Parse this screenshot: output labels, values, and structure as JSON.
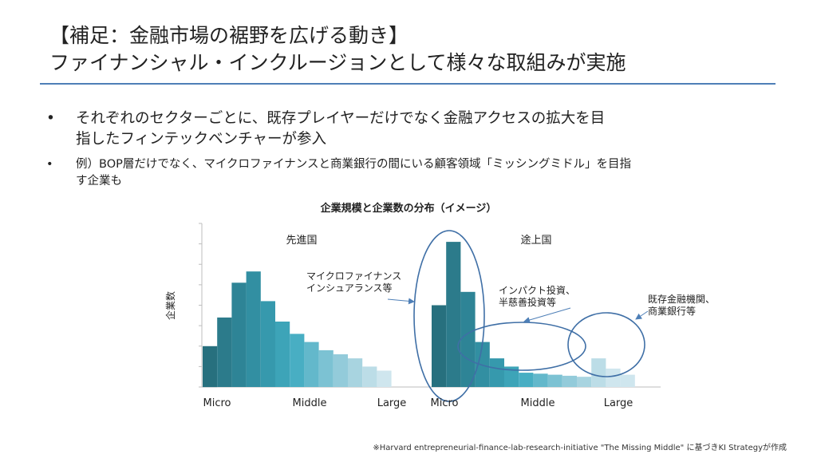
{
  "slide": {
    "title_line1": "【補足：金融市場の裾野を広げる動き】",
    "title_line2": "ファイナンシャル・インクルージョンとして様々な取組みが実施",
    "bullets": [
      {
        "marker": "•",
        "text_line1": "それぞれのセクターごとに、既存プレイヤーだけでなく金融アクセスの拡大を目",
        "text_line2": "指したフィンテックベンチャーが参入"
      },
      {
        "marker": "•",
        "text_line1": "例）BOP層だけでなく、マイクロファイナンスと商業銀行の間にいる顧客領域「ミッシングミドル」を目指",
        "text_line2": "す企業も"
      }
    ],
    "footnote": "※Harvard entrepreneurial-finance-lab-research-initiative \"The Missing Middle\" に基づきKI Strategyが作成"
  },
  "chart_data": {
    "type": "bar",
    "title": "企業規模と企業数の分布（イメージ）",
    "ylabel": "企業数",
    "ylim": [
      0,
      8
    ],
    "grid": false,
    "groups": [
      {
        "name": "先進国",
        "x_ticks": [
          "Micro",
          "Middle",
          "Large"
        ],
        "values": [
          2.0,
          3.4,
          5.1,
          5.65,
          4.2,
          3.2,
          2.6,
          2.2,
          1.8,
          1.6,
          1.4,
          1.0,
          0.8
        ]
      },
      {
        "name": "途上国",
        "x_ticks": [
          "Micro",
          "Middle",
          "Large"
        ],
        "values": [
          4.0,
          7.1,
          4.65,
          2.2,
          1.4,
          1.0,
          0.7,
          0.65,
          0.6,
          0.55,
          0.5,
          1.4,
          0.9,
          0.6
        ]
      }
    ],
    "annotations": [
      {
        "line1": "マイクロファイナンス",
        "line2": "インシュアランス等"
      },
      {
        "line1": "インパクト投資、",
        "line2": "半慈善投資等"
      },
      {
        "line1": "既存金融機関、",
        "line2": "商業銀行等"
      }
    ],
    "colors": [
      "#27707e",
      "#2c7b8b",
      "#2e8496",
      "#328fa2",
      "#3699ad",
      "#3da4b8",
      "#48aec3",
      "#63b8cb",
      "#7cc2d3",
      "#93cbda",
      "#a8d4e0",
      "#bcdde7",
      "#cfe6ee"
    ]
  }
}
